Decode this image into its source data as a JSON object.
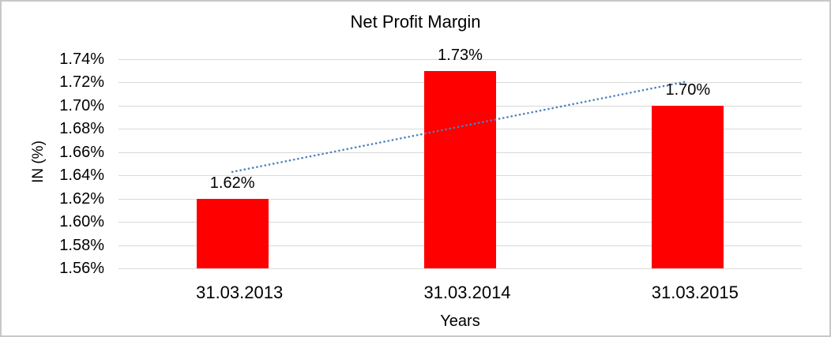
{
  "chart_data": {
    "type": "bar",
    "title": "Net Profit Margin",
    "xlabel": "Years",
    "ylabel": "IN (%)",
    "categories": [
      "31.03.2013",
      "31.03.2014",
      "31.03.2015"
    ],
    "values": [
      1.62,
      1.73,
      1.7
    ],
    "value_labels": [
      "1.62%",
      "1.73%",
      "1.70%"
    ],
    "bar_color": "#ff0000",
    "ylim": [
      1.56,
      1.74
    ],
    "ytick_step": 0.02,
    "yticks": [
      "1.74%",
      "1.72%",
      "1.70%",
      "1.68%",
      "1.66%",
      "1.64%",
      "1.62%",
      "1.60%",
      "1.58%",
      "1.56%"
    ],
    "grid": true,
    "gridline_color": "#d9d9d9",
    "legend": "none",
    "text_color": "#000000",
    "frame_border_color": "#c8c8c8",
    "trendline": {
      "type": "linear",
      "style": "dotted",
      "color": "#4f81bd",
      "start_value": 1.643,
      "end_value": 1.721
    }
  }
}
